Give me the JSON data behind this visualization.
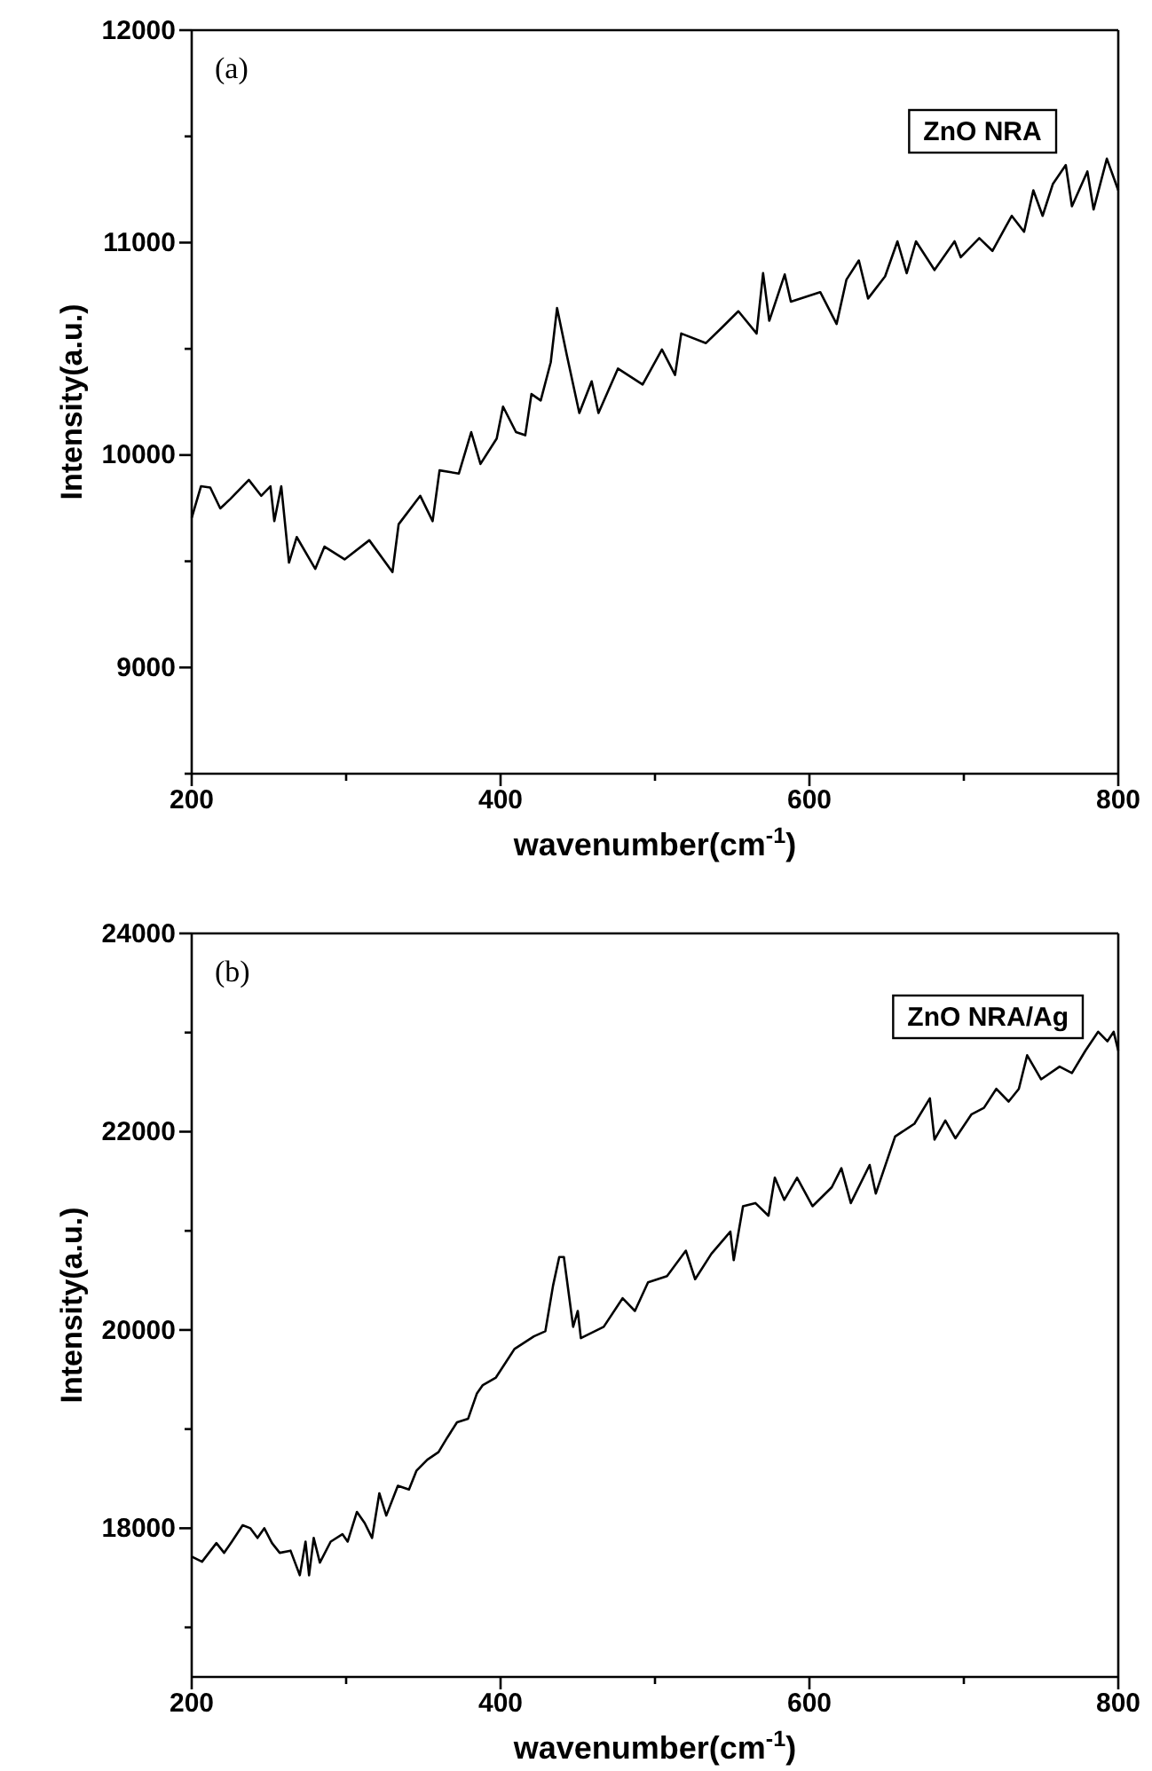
{
  "chart_data": [
    {
      "type": "line",
      "xlabel": "wavenumber(cm$^{-1}$)",
      "ylabel": "Intensity(a.u.)",
      "annotations": [
        "(a)"
      ],
      "legend": "top right",
      "xlim": [
        200,
        800
      ],
      "ylim": [
        8500,
        12000
      ],
      "xticks": [
        200,
        {
          "value": 300,
          "label": null
        },
        400,
        {
          "value": 500,
          "label": null
        },
        600,
        {
          "value": 700,
          "label": null
        },
        800
      ],
      "yticks": [
        {
          "value": 8500,
          "label": null
        },
        9000,
        {
          "value": 9500,
          "label": null
        },
        10000,
        {
          "value": 10500,
          "label": null
        },
        11000,
        {
          "value": 11500,
          "label": null
        },
        12000
      ],
      "series": [
        {
          "name": "ZnO NRA",
          "color": "#000000",
          "x": [
            200,
            206,
            212,
            218.5,
            225,
            237,
            245,
            251,
            253.5,
            258,
            263,
            268,
            280,
            286,
            299,
            315,
            330,
            334,
            348,
            356,
            360.5,
            373,
            381,
            387,
            397.5,
            401.6,
            410,
            416,
            420,
            426,
            432.5,
            436.6,
            443,
            451,
            459,
            463.4,
            476,
            492,
            504.5,
            513,
            517,
            533,
            543.6,
            554,
            565.8,
            570,
            574,
            584,
            588,
            607,
            617.6,
            624,
            632,
            638,
            649,
            657,
            663,
            669,
            681,
            694,
            698,
            710,
            718.5,
            731,
            739,
            745,
            751,
            757.6,
            766,
            770,
            780,
            784,
            792.6,
            800
          ],
          "values": [
            9704,
            9853,
            9847,
            9749,
            9793,
            9883,
            9808,
            9853,
            9689,
            9853,
            9494,
            9614,
            9464,
            9569,
            9509,
            9599,
            9449,
            9674,
            9808,
            9689,
            9928,
            9913,
            10108,
            9958,
            10078,
            10228,
            10108,
            10093,
            10287,
            10257,
            10437,
            10692,
            10467,
            10198,
            10347,
            10198,
            10407,
            10332,
            10497,
            10377,
            10572,
            10527,
            10602,
            10677,
            10572,
            10856,
            10632,
            10850,
            10722,
            10767,
            10617,
            10826,
            10916,
            10737,
            10841,
            11006,
            10856,
            11006,
            10871,
            11006,
            10931,
            11021,
            10961,
            11126,
            11051,
            11246,
            11126,
            11275,
            11365,
            11171,
            11335,
            11156,
            11395,
            11246
          ]
        }
      ]
    },
    {
      "type": "line",
      "xlabel": "wavenumber(cm$^{-1}$)",
      "ylabel": "Intensity(a.u.)",
      "annotations": [
        "(b)"
      ],
      "legend": "top right",
      "xlim": [
        200,
        800
      ],
      "ylim": [
        16500,
        24000
      ],
      "xticks": [
        200,
        {
          "value": 300,
          "label": null
        },
        400,
        {
          "value": 500,
          "label": null
        },
        600,
        {
          "value": 700,
          "label": null
        },
        800
      ],
      "yticks": [
        {
          "value": 17000,
          "label": null
        },
        18000,
        {
          "value": 19000,
          "label": null
        },
        20000,
        {
          "value": 21000,
          "label": null
        },
        22000,
        {
          "value": 23000,
          "label": null
        },
        24000
      ],
      "series": [
        {
          "name": "ZnO NRA/Ag",
          "color": "#000000",
          "x": [
            200,
            206.7,
            216,
            221,
            226,
            233,
            238,
            242.6,
            247,
            252,
            257,
            264,
            270,
            273.7,
            276,
            279,
            283,
            290,
            297.6,
            301,
            307,
            312,
            316.8,
            321.5,
            326,
            333.5,
            340.7,
            345.5,
            352.6,
            359.8,
            365.6,
            371.8,
            379,
            384.7,
            388.5,
            397,
            409,
            421.6,
            429,
            434,
            438,
            441,
            444,
            447,
            450,
            452,
            466.8,
            479,
            487,
            495.5,
            507.8,
            520,
            526,
            536.5,
            548.8,
            551,
            557,
            565,
            573.5,
            577.6,
            583.7,
            592,
            602,
            614.5,
            620.7,
            626.8,
            639,
            643,
            655.5,
            668,
            678,
            681,
            688,
            694.5,
            705,
            713,
            721,
            729,
            735.6,
            741,
            750,
            762,
            770,
            778.7,
            787,
            793,
            797,
            800
          ],
          "values": [
            17714,
            17662,
            17850,
            17752,
            17865,
            18030,
            18000,
            17902,
            18000,
            17850,
            17752,
            17774,
            17526,
            17865,
            17526,
            17902,
            17654,
            17865,
            17940,
            17865,
            18165,
            18053,
            17902,
            18353,
            18128,
            18429,
            18391,
            18579,
            18692,
            18767,
            18917,
            19068,
            19105,
            19360,
            19444,
            19520,
            19808,
            19936,
            19987,
            20448,
            20736,
            20736,
            20384,
            20032,
            20192,
            19917,
            20032,
            20320,
            20192,
            20480,
            20544,
            20800,
            20512,
            20768,
            20992,
            20704,
            21248,
            21280,
            21152,
            21536,
            21312,
            21536,
            21248,
            21440,
            21632,
            21280,
            21664,
            21376,
            21952,
            22080,
            22336,
            21920,
            22112,
            21933,
            22176,
            22240,
            22432,
            22304,
            22432,
            22771,
            22528,
            22656,
            22592,
            22816,
            23008,
            22912,
            23008,
            22816
          ]
        }
      ]
    }
  ]
}
